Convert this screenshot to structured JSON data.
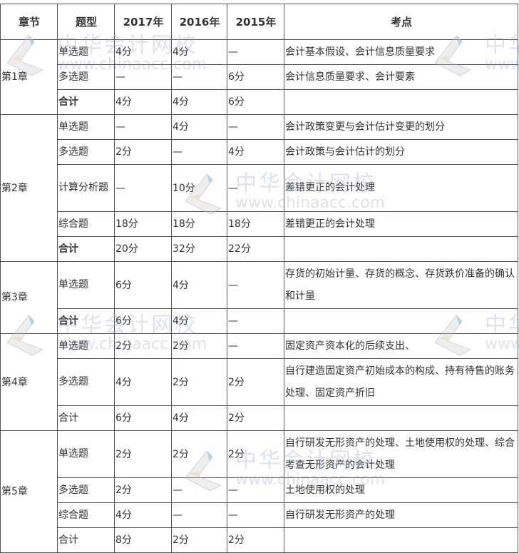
{
  "headers": [
    "章节",
    "题型",
    "2017年",
    "2016年",
    "2015年",
    "考点"
  ],
  "chapters": [
    {
      "name": "第1章",
      "rows": [
        {
          "type": "单选题",
          "y2017": "4分",
          "y2016": "4分",
          "y2015": "—",
          "points": "会计基本假设、会计信息质量要求",
          "bold": false
        },
        {
          "type": "多选题",
          "y2017": "—",
          "y2016": "—",
          "y2015": "6分",
          "points": "会计信息质量要求、会计要素",
          "bold": false
        },
        {
          "type": "合计",
          "y2017": "4分",
          "y2016": "4分",
          "y2015": "6分",
          "points": "",
          "bold": true
        }
      ]
    },
    {
      "name": "第2章",
      "rows": [
        {
          "type": "单选题",
          "y2017": "—",
          "y2016": "4分",
          "y2015": "—",
          "points": "会计政策变更与会计估计变更的划分",
          "bold": false
        },
        {
          "type": "多选题",
          "y2017": "2分",
          "y2016": "—",
          "y2015": "4分",
          "points": "会计政策与会计估计的划分",
          "bold": false
        },
        {
          "type": "计算分析题",
          "y2017": "—",
          "y2016": "10分",
          "y2015": "—",
          "points": "差错更正的会计处理",
          "bold": false,
          "tall": true
        },
        {
          "type": "综合题",
          "y2017": "18分",
          "y2016": "18分",
          "y2015": "18分",
          "points": "差错更正的会计处理",
          "bold": false
        },
        {
          "type": "合计",
          "y2017": "20分",
          "y2016": "32分",
          "y2015": "22分",
          "points": "",
          "bold": true
        }
      ]
    },
    {
      "name": "第3章",
      "rows": [
        {
          "type": "单选题",
          "y2017": "6分",
          "y2016": "4分",
          "y2015": "—",
          "points": "存货的初始计量、存货的概念、存货跌价准备的确认和计量",
          "bold": false,
          "tall": true
        },
        {
          "type": "合计",
          "y2017": "6分",
          "y2016": "4分",
          "y2015": "—",
          "points": "",
          "bold": true
        }
      ]
    },
    {
      "name": "第4章",
      "rows": [
        {
          "type": "单选题",
          "y2017": "2分",
          "y2016": "2分",
          "y2015": "—",
          "points": "固定资产资本化的后续支出、",
          "bold": false
        },
        {
          "type": "多选题",
          "y2017": "4分",
          "y2016": "2分",
          "y2015": "2分",
          "points": "自行建造固定资产初始成本的构成、持有待售的账务处理、固定资产折旧",
          "bold": false,
          "tall": true
        },
        {
          "type": "合计",
          "y2017": "6分",
          "y2016": "4分",
          "y2015": "2分",
          "points": "",
          "bold": false
        }
      ]
    },
    {
      "name": "第5章",
      "rows": [
        {
          "type": "单选题",
          "y2017": "2分",
          "y2016": "2分",
          "y2015": "2分",
          "points": "自行研发无形资产的处理、土地使用权的处理、综合考查无形资产的会计处理",
          "bold": false,
          "tall": true
        },
        {
          "type": "多选题",
          "y2017": "2分",
          "y2016": "—",
          "y2015": "—",
          "points": "土地使用权的处理",
          "bold": false
        },
        {
          "type": "综合题",
          "y2017": "4分",
          "y2016": "—",
          "y2015": "—",
          "points": "自行研发无形资产的处理",
          "bold": false
        },
        {
          "type": "合计",
          "y2017": "8分",
          "y2016": "2分",
          "y2015": "2分",
          "points": "",
          "bold": false
        }
      ]
    }
  ],
  "watermark": {
    "cn": "中华会计网校",
    "en": "www.chinaacc.com"
  }
}
